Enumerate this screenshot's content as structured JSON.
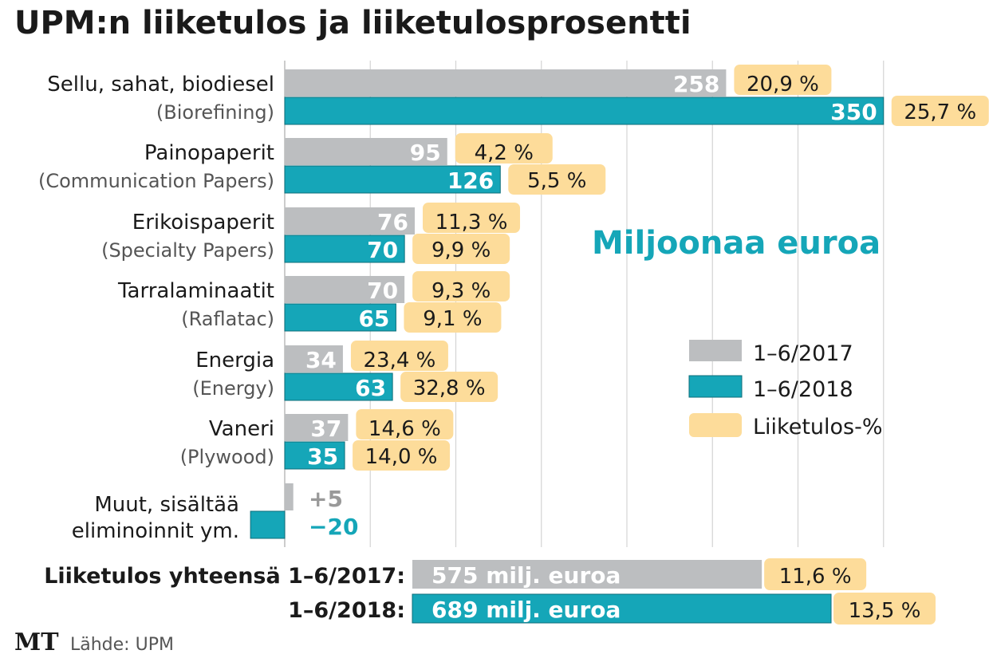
{
  "chart_data": {
    "type": "bar",
    "title": "UPM:n liiketulos ja liiketulosprosentti",
    "unit_label": "Miljoonaa euroa",
    "xlabel": "",
    "ylabel": "",
    "xlim": [
      -25,
      350
    ],
    "grid_step": 50,
    "grid": true,
    "legend_position": "right",
    "legend": [
      {
        "label": "1–6/2017",
        "color": "#bcbec0"
      },
      {
        "label": "1–6/2018",
        "color": "#15a6b8"
      },
      {
        "label": "Liiketulos-%",
        "color": "#fddc9a"
      }
    ],
    "categories": [
      {
        "name": "Sellu, sahat, biodiesel",
        "sub": "(Biorefining)"
      },
      {
        "name": "Painopaperit",
        "sub": "(Communication Papers)"
      },
      {
        "name": "Erikoispaperit",
        "sub": "(Specialty Papers)"
      },
      {
        "name": "Tarralaminaatit",
        "sub": "(Raflatac)"
      },
      {
        "name": "Energia",
        "sub": "(Energy)"
      },
      {
        "name": "Vaneri",
        "sub": "(Plywood)"
      },
      {
        "name": "Muut, sisältää",
        "sub": "eliminoinnit ym."
      }
    ],
    "series": [
      {
        "name": "1–6/2017",
        "color": "#bcbec0",
        "values": [
          258,
          95,
          76,
          70,
          34,
          37,
          5
        ],
        "value_labels": [
          "258",
          "95",
          "76",
          "70",
          "34",
          "37",
          "+5"
        ],
        "pct_labels": [
          "20,9 %",
          "4,2 %",
          "11,3 %",
          "9,3 %",
          "23,4 %",
          "14,6 %",
          null
        ]
      },
      {
        "name": "1–6/2018",
        "color": "#15a6b8",
        "values": [
          350,
          126,
          70,
          65,
          63,
          35,
          -20
        ],
        "value_labels": [
          "350",
          "126",
          "70",
          "65",
          "63",
          "35",
          "−20"
        ],
        "pct_labels": [
          "25,7 %",
          "5,5 %",
          "9,9 %",
          "9,1 %",
          "32,8 %",
          "14,0 %",
          null
        ]
      }
    ],
    "totals": {
      "label_2017": "Liiketulos yhteensä 1–6/2017:",
      "label_2018": "1–6/2018:",
      "values": [
        575,
        689
      ],
      "value_labels": [
        "575 milj. euroa",
        "689 milj. euroa"
      ],
      "pct_labels": [
        "11,6 %",
        "13,5 %"
      ]
    }
  },
  "footer": {
    "logo": "MT",
    "source": "Lähde: UPM"
  }
}
